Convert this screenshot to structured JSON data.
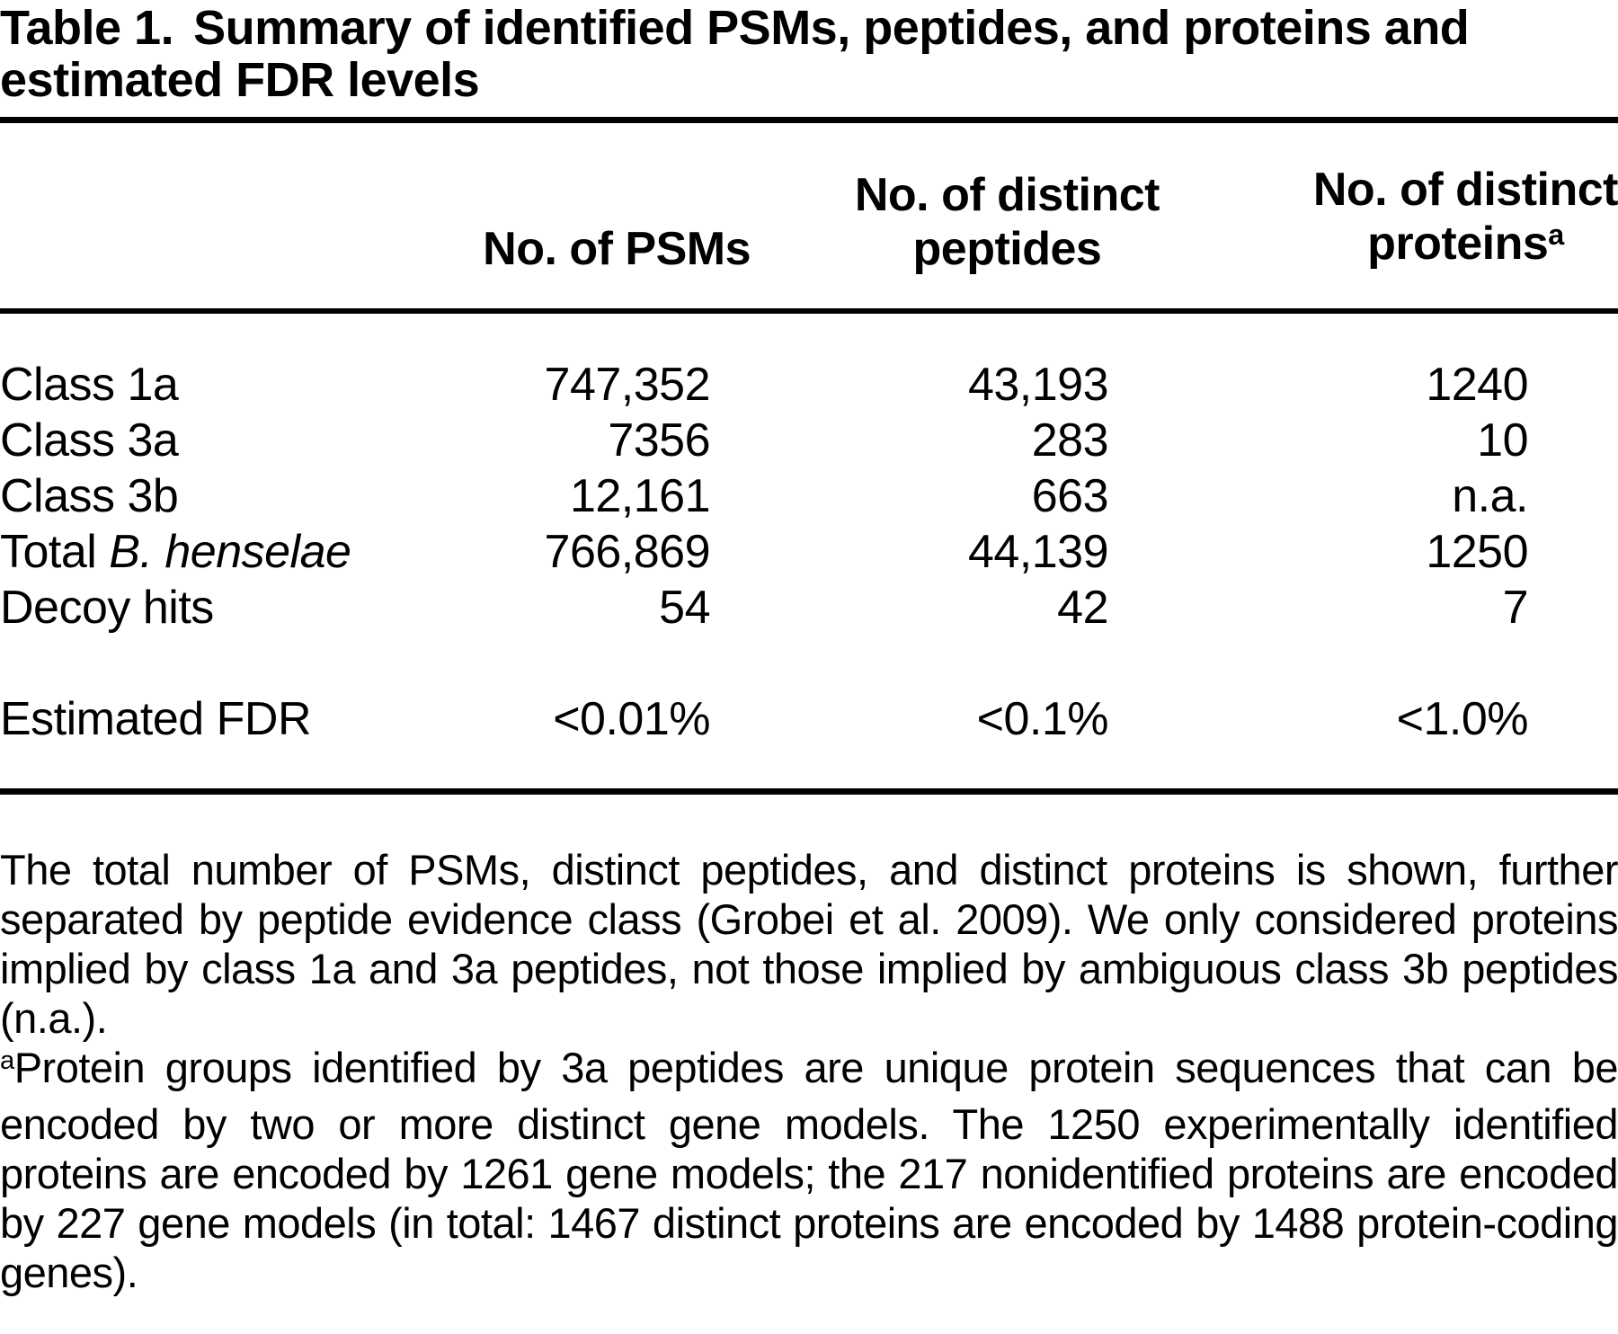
{
  "title": {
    "label": "Table 1.",
    "line1_rest": "Summary of identified PSMs, peptides, and proteins and",
    "line2": "estimated FDR levels"
  },
  "table": {
    "header": {
      "psms": "No. of PSMs",
      "peptides_line1": "No. of distinct",
      "peptides_line2": "peptides",
      "proteins_line1": "No. of distinct",
      "proteins_line2": "proteins",
      "proteins_footnote_marker": "a"
    },
    "rows": [
      {
        "label": "Class 1a",
        "psms": "747,352",
        "peptides": "43,193",
        "proteins": "1240"
      },
      {
        "label": "Class 3a",
        "psms": "7356",
        "peptides": "283",
        "proteins": "10"
      },
      {
        "label": "Class 3b",
        "psms": "12,161",
        "peptides": "663",
        "proteins": "n.a."
      },
      {
        "label_prefix": "Total",
        "label_species": "B. henselae",
        "psms": "766,869",
        "peptides": "44,139",
        "proteins": "1250"
      },
      {
        "label": "Decoy hits",
        "psms": "54",
        "peptides": "42",
        "proteins": "7"
      }
    ],
    "fdr_row": {
      "label": "Estimated FDR",
      "psms": "<0.01%",
      "peptides": "<0.1%",
      "proteins": "<1.0%"
    }
  },
  "footnotes": {
    "general": "The total number of PSMs, distinct peptides, and distinct proteins is shown, further separated by peptide evidence class (Grobei et al. 2009). We only considered proteins implied by class 1a and 3a peptides, not those implied by ambiguous class 3b peptides (n.a.).",
    "a_marker": "a",
    "a_text": "Protein groups identified by 3a peptides are unique protein sequences that can be encoded by two or more distinct gene models. The 1250 experimentally identified proteins are encoded by 1261 gene models; the 217 nonidentified proteins are encoded by 227 gene models (in total: 1467 distinct proteins are encoded by 1488 protein-coding genes)."
  }
}
